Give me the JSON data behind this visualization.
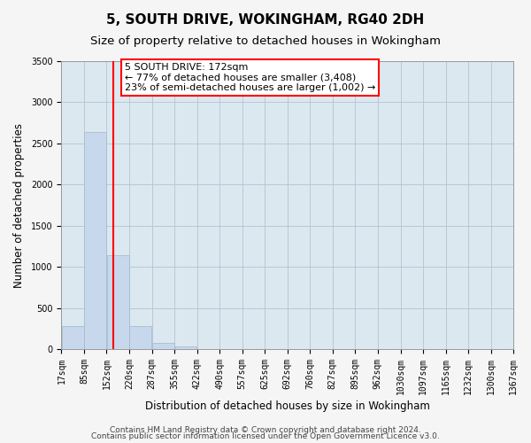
{
  "title": "5, SOUTH DRIVE, WOKINGHAM, RG40 2DH",
  "subtitle": "Size of property relative to detached houses in Wokingham",
  "xlabel": "Distribution of detached houses by size in Wokingham",
  "ylabel": "Number of detached properties",
  "bar_color": "#c8d8ec",
  "bar_edge_color": "#a0b8cc",
  "bin_edges": [
    17,
    85,
    152,
    220,
    287,
    355,
    422,
    490,
    557,
    625,
    692,
    760,
    827,
    895,
    962,
    1030,
    1097,
    1165,
    1232,
    1300,
    1367
  ],
  "bar_heights": [
    280,
    2640,
    1140,
    280,
    80,
    30,
    5,
    0,
    0,
    0,
    0,
    0,
    0,
    0,
    0,
    0,
    0,
    0,
    0,
    0
  ],
  "tick_labels": [
    "17sqm",
    "85sqm",
    "152sqm",
    "220sqm",
    "287sqm",
    "355sqm",
    "422sqm",
    "490sqm",
    "557sqm",
    "625sqm",
    "692sqm",
    "760sqm",
    "827sqm",
    "895sqm",
    "962sqm",
    "1030sqm",
    "1097sqm",
    "1165sqm",
    "1232sqm",
    "1300sqm",
    "1367sqm"
  ],
  "ylim": [
    0,
    3500
  ],
  "yticks": [
    0,
    500,
    1000,
    1500,
    2000,
    2500,
    3000,
    3500
  ],
  "property_line_x": 172,
  "ann_line1": "5 SOUTH DRIVE: 172sqm",
  "ann_line2": "← 77% of detached houses are smaller (3,408)",
  "ann_line3": "23% of semi-detached houses are larger (1,002) →",
  "footer_line1": "Contains HM Land Registry data © Crown copyright and database right 2024.",
  "footer_line2": "Contains public sector information licensed under the Open Government Licence v3.0.",
  "background_color": "#f5f5f5",
  "plot_background_color": "#dce8f0",
  "grid_color": "#b0c4d4",
  "title_fontsize": 11,
  "subtitle_fontsize": 9.5,
  "axis_label_fontsize": 8.5,
  "tick_fontsize": 7,
  "footer_fontsize": 6.5,
  "ann_fontsize": 8
}
